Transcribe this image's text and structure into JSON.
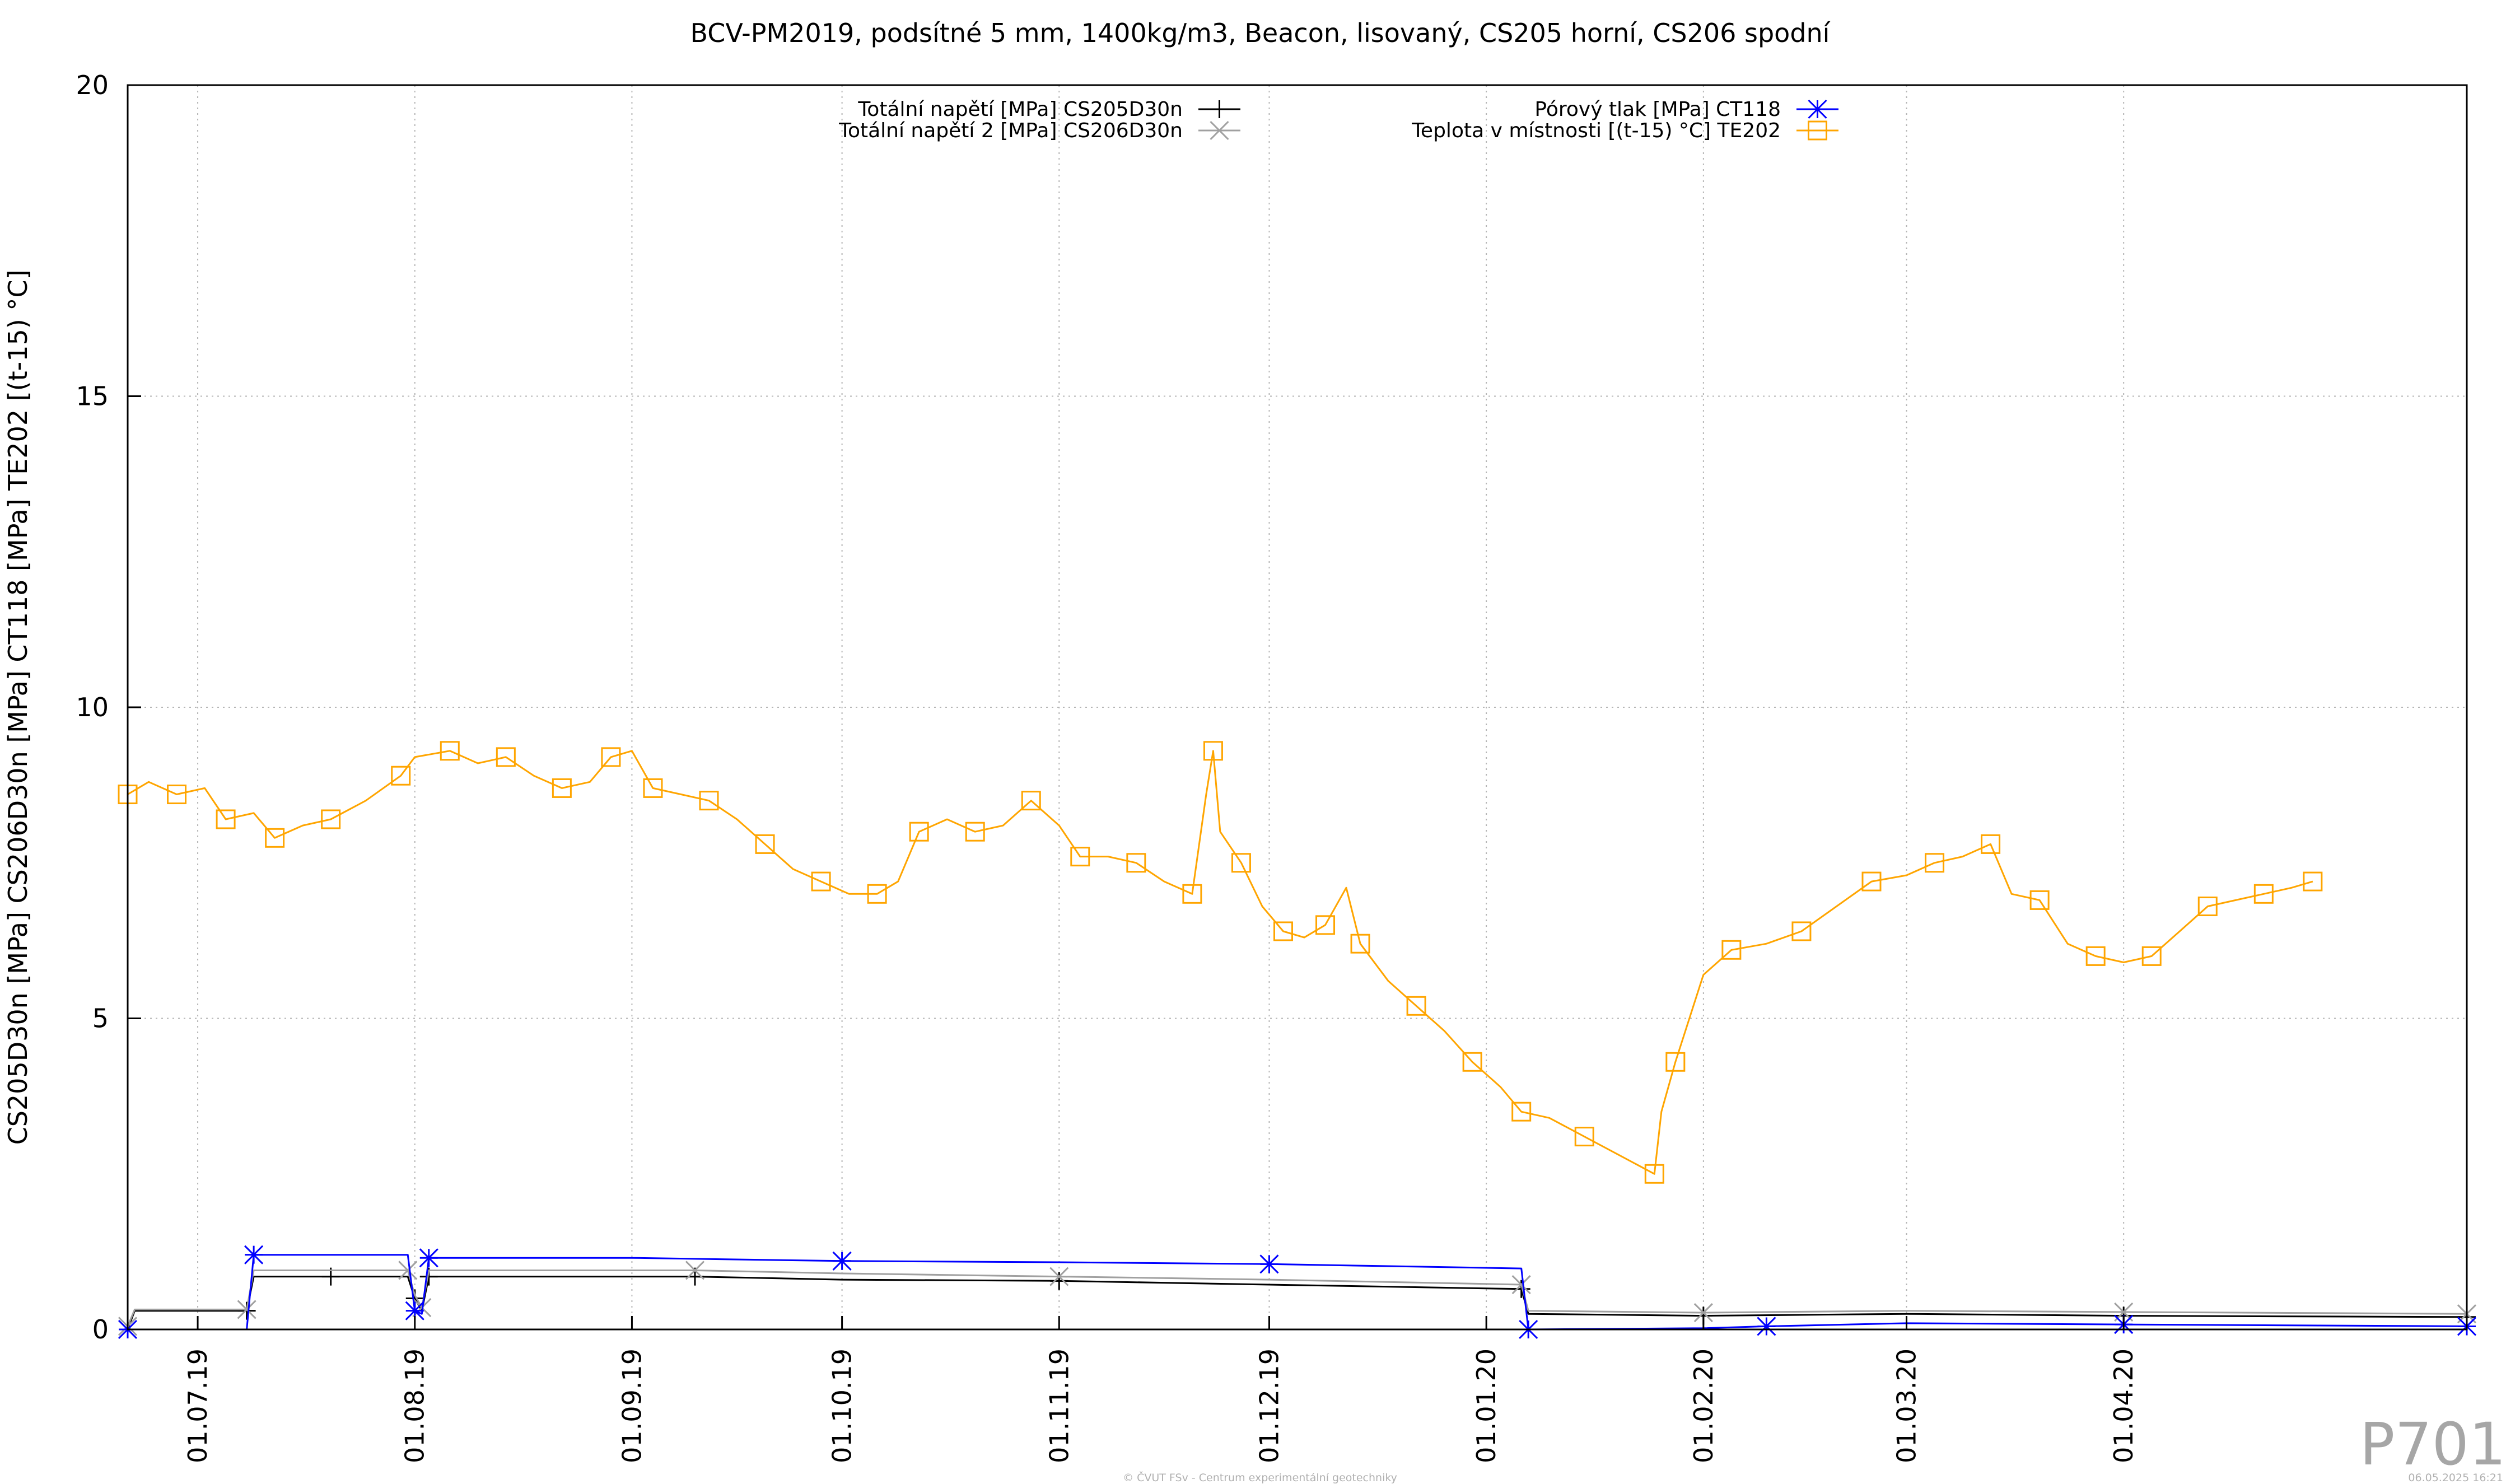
{
  "chart_data": {
    "type": "line",
    "title": "BCV-PM2019, podsítné 5 mm, 1400kg/m3, Beacon, lisovaný, CS205 horní, CS206 spodní",
    "ylabel": "CS205D30n [MPa] CS206D30n [MPa] CT118 [MPa] TE202 [(t-15) °C]",
    "xlabel": "",
    "ylim": [
      0,
      20
    ],
    "yticks": [
      "0",
      "5",
      "10",
      "15",
      "20"
    ],
    "xlim": [
      "2019-06-21",
      "2020-05-20"
    ],
    "xticks": [
      {
        "date": "2019-07-01",
        "label": "01.07.19"
      },
      {
        "date": "2019-08-01",
        "label": "01.08.19"
      },
      {
        "date": "2019-09-01",
        "label": "01.09.19"
      },
      {
        "date": "2019-10-01",
        "label": "01.10.19"
      },
      {
        "date": "2019-11-01",
        "label": "01.11.19"
      },
      {
        "date": "2019-12-01",
        "label": "01.12.19"
      },
      {
        "date": "2020-01-01",
        "label": "01.01.20"
      },
      {
        "date": "2020-02-01",
        "label": "01.02.20"
      },
      {
        "date": "2020-03-01",
        "label": "01.03.20"
      },
      {
        "date": "2020-04-01",
        "label": "01.04.20"
      }
    ],
    "grid": true,
    "legend_position": "top",
    "series": [
      {
        "name": "Totální napětí [MPa] CS205D30n",
        "color": "#000000",
        "marker": "plus",
        "points": [
          [
            "2019-06-21",
            0.0
          ],
          [
            "2019-06-22",
            0.3
          ],
          [
            "2019-07-08",
            0.3
          ],
          [
            "2019-07-09",
            0.85
          ],
          [
            "2019-07-20",
            0.85
          ],
          [
            "2019-07-31",
            0.85
          ],
          [
            "2019-08-01",
            0.5
          ],
          [
            "2019-08-02",
            0.3
          ],
          [
            "2019-08-03",
            0.85
          ],
          [
            "2019-08-20",
            0.85
          ],
          [
            "2019-09-10",
            0.85
          ],
          [
            "2019-10-01",
            0.8
          ],
          [
            "2019-11-01",
            0.78
          ],
          [
            "2019-12-01",
            0.72
          ],
          [
            "2020-01-06",
            0.65
          ],
          [
            "2020-01-07",
            0.25
          ],
          [
            "2020-02-01",
            0.22
          ],
          [
            "2020-03-01",
            0.25
          ],
          [
            "2020-04-01",
            0.22
          ],
          [
            "2020-05-20",
            0.2
          ]
        ]
      },
      {
        "name": "Totální napětí 2 [MPa] CS206D30n",
        "color": "#a0a0a0",
        "marker": "cross",
        "points": [
          [
            "2019-06-21",
            0.05
          ],
          [
            "2019-06-22",
            0.32
          ],
          [
            "2019-07-08",
            0.32
          ],
          [
            "2019-07-09",
            0.95
          ],
          [
            "2019-07-31",
            0.95
          ],
          [
            "2019-08-01",
            0.55
          ],
          [
            "2019-08-02",
            0.35
          ],
          [
            "2019-08-03",
            0.95
          ],
          [
            "2019-09-10",
            0.95
          ],
          [
            "2019-10-01",
            0.9
          ],
          [
            "2019-11-01",
            0.85
          ],
          [
            "2019-12-01",
            0.8
          ],
          [
            "2020-01-06",
            0.72
          ],
          [
            "2020-01-07",
            0.3
          ],
          [
            "2020-02-01",
            0.27
          ],
          [
            "2020-03-01",
            0.3
          ],
          [
            "2020-04-01",
            0.28
          ],
          [
            "2020-05-20",
            0.25
          ]
        ]
      },
      {
        "name": "Pórový tlak [MPa] CT118",
        "color": "#0000ff",
        "marker": "star",
        "points": [
          [
            "2019-06-21",
            0.0
          ],
          [
            "2019-07-08",
            0.0
          ],
          [
            "2019-07-09",
            1.2
          ],
          [
            "2019-07-31",
            1.2
          ],
          [
            "2019-08-01",
            0.3
          ],
          [
            "2019-08-02",
            0.25
          ],
          [
            "2019-08-03",
            1.15
          ],
          [
            "2019-09-01",
            1.15
          ],
          [
            "2019-10-01",
            1.1
          ],
          [
            "2019-11-01",
            1.08
          ],
          [
            "2019-12-01",
            1.05
          ],
          [
            "2020-01-06",
            0.98
          ],
          [
            "2020-01-07",
            0.0
          ],
          [
            "2020-02-01",
            0.02
          ],
          [
            "2020-02-10",
            0.05
          ],
          [
            "2020-03-01",
            0.1
          ],
          [
            "2020-04-01",
            0.08
          ],
          [
            "2020-05-20",
            0.05
          ]
        ]
      },
      {
        "name": "Teplota v místnosti [(t-15) °C] TE202",
        "color": "#ffa500",
        "marker": "square",
        "points": [
          [
            "2019-06-21",
            8.6
          ],
          [
            "2019-06-24",
            8.8
          ],
          [
            "2019-06-28",
            8.6
          ],
          [
            "2019-07-02",
            8.7
          ],
          [
            "2019-07-05",
            8.2
          ],
          [
            "2019-07-09",
            8.3
          ],
          [
            "2019-07-12",
            7.9
          ],
          [
            "2019-07-16",
            8.1
          ],
          [
            "2019-07-20",
            8.2
          ],
          [
            "2019-07-25",
            8.5
          ],
          [
            "2019-07-30",
            8.9
          ],
          [
            "2019-08-01",
            9.2
          ],
          [
            "2019-08-06",
            9.3
          ],
          [
            "2019-08-10",
            9.1
          ],
          [
            "2019-08-14",
            9.2
          ],
          [
            "2019-08-18",
            8.9
          ],
          [
            "2019-08-22",
            8.7
          ],
          [
            "2019-08-26",
            8.8
          ],
          [
            "2019-08-29",
            9.2
          ],
          [
            "2019-09-01",
            9.3
          ],
          [
            "2019-09-04",
            8.7
          ],
          [
            "2019-09-08",
            8.6
          ],
          [
            "2019-09-12",
            8.5
          ],
          [
            "2019-09-16",
            8.2
          ],
          [
            "2019-09-20",
            7.8
          ],
          [
            "2019-09-24",
            7.4
          ],
          [
            "2019-09-28",
            7.2
          ],
          [
            "2019-10-02",
            7.0
          ],
          [
            "2019-10-06",
            7.0
          ],
          [
            "2019-10-09",
            7.2
          ],
          [
            "2019-10-12",
            8.0
          ],
          [
            "2019-10-16",
            8.2
          ],
          [
            "2019-10-20",
            8.0
          ],
          [
            "2019-10-24",
            8.1
          ],
          [
            "2019-10-28",
            8.5
          ],
          [
            "2019-11-01",
            8.1
          ],
          [
            "2019-11-04",
            7.6
          ],
          [
            "2019-11-08",
            7.6
          ],
          [
            "2019-11-12",
            7.5
          ],
          [
            "2019-11-16",
            7.2
          ],
          [
            "2019-11-20",
            7.0
          ],
          [
            "2019-11-22",
            8.6
          ],
          [
            "2019-11-23",
            9.3
          ],
          [
            "2019-11-24",
            8.0
          ],
          [
            "2019-11-27",
            7.5
          ],
          [
            "2019-11-30",
            6.8
          ],
          [
            "2019-12-03",
            6.4
          ],
          [
            "2019-12-06",
            6.3
          ],
          [
            "2019-12-09",
            6.5
          ],
          [
            "2019-12-12",
            7.1
          ],
          [
            "2019-12-14",
            6.2
          ],
          [
            "2019-12-18",
            5.6
          ],
          [
            "2019-12-22",
            5.2
          ],
          [
            "2019-12-26",
            4.8
          ],
          [
            "2019-12-30",
            4.3
          ],
          [
            "2020-01-03",
            3.9
          ],
          [
            "2020-01-06",
            3.5
          ],
          [
            "2020-01-10",
            3.4
          ],
          [
            "2020-01-15",
            3.1
          ],
          [
            "2020-01-20",
            2.8
          ],
          [
            "2020-01-25",
            2.5
          ],
          [
            "2020-01-26",
            3.5
          ],
          [
            "2020-01-28",
            4.3
          ],
          [
            "2020-02-01",
            5.7
          ],
          [
            "2020-02-05",
            6.1
          ],
          [
            "2020-02-10",
            6.2
          ],
          [
            "2020-02-15",
            6.4
          ],
          [
            "2020-02-20",
            6.8
          ],
          [
            "2020-02-25",
            7.2
          ],
          [
            "2020-03-01",
            7.3
          ],
          [
            "2020-03-05",
            7.5
          ],
          [
            "2020-03-09",
            7.6
          ],
          [
            "2020-03-13",
            7.8
          ],
          [
            "2020-03-16",
            7.0
          ],
          [
            "2020-03-20",
            6.9
          ],
          [
            "2020-03-24",
            6.2
          ],
          [
            "2020-03-28",
            6.0
          ],
          [
            "2020-04-01",
            5.9
          ],
          [
            "2020-04-05",
            6.0
          ],
          [
            "2020-04-09",
            6.4
          ],
          [
            "2020-04-13",
            6.8
          ],
          [
            "2020-04-17",
            6.9
          ],
          [
            "2020-04-21",
            7.0
          ],
          [
            "2020-04-25",
            7.1
          ],
          [
            "2020-04-28",
            7.2
          ]
        ]
      }
    ]
  },
  "watermark": "P701",
  "footer_center": "© ČVUT FSv - Centrum experimentální geotechniky",
  "footer_right": "06.05.2025 16:21"
}
